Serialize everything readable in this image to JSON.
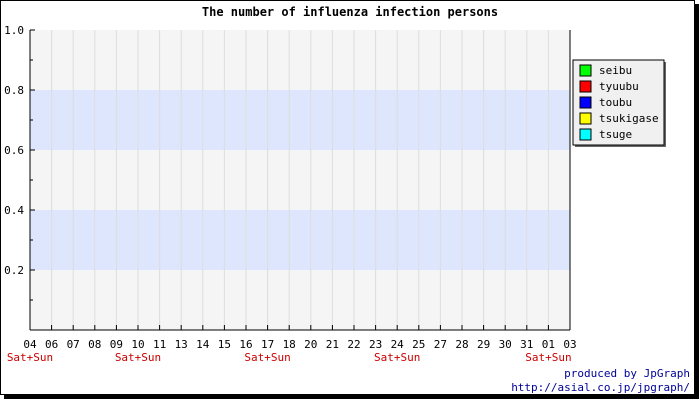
{
  "chart_data": {
    "type": "line",
    "title": "The number of influenza infection persons",
    "xlabel": "",
    "ylabel": "",
    "ylim": [
      0,
      1.0
    ],
    "y_ticks": [
      "0.2",
      "0.4",
      "0.6",
      "0.8",
      "1.0"
    ],
    "x_tick_labels": [
      "04",
      "06",
      "07",
      "08",
      "09",
      "10",
      "11",
      "13",
      "14",
      "15",
      "16",
      "17",
      "18",
      "20",
      "21",
      "22",
      "23",
      "24",
      "25",
      "27",
      "28",
      "29",
      "30",
      "31",
      "01",
      "03"
    ],
    "weekend_marker_label": "Sat+Sun",
    "weekend_marker_ticks": [
      "04",
      "10",
      "17",
      "24",
      "01"
    ],
    "grid": true,
    "legend_position": "top-right",
    "series": [
      {
        "name": "seibu",
        "color": "#00ff00",
        "values": []
      },
      {
        "name": "tyuubu",
        "color": "#ff0000",
        "values": []
      },
      {
        "name": "toubu",
        "color": "#0000ff",
        "values": []
      },
      {
        "name": "tsukigase",
        "color": "#ffff00",
        "values": []
      },
      {
        "name": "tsuge",
        "color": "#00ffff",
        "values": []
      }
    ],
    "colors": {
      "plot_background": "#f5f5f5",
      "band_fill": "#dde6fc",
      "grid": "#dddddd",
      "weekend_label": "#cc0000",
      "credit": "#000099"
    }
  },
  "credit": {
    "line1": "produced by JpGraph",
    "line2": "http://asial.co.jp/jpgraph/"
  }
}
